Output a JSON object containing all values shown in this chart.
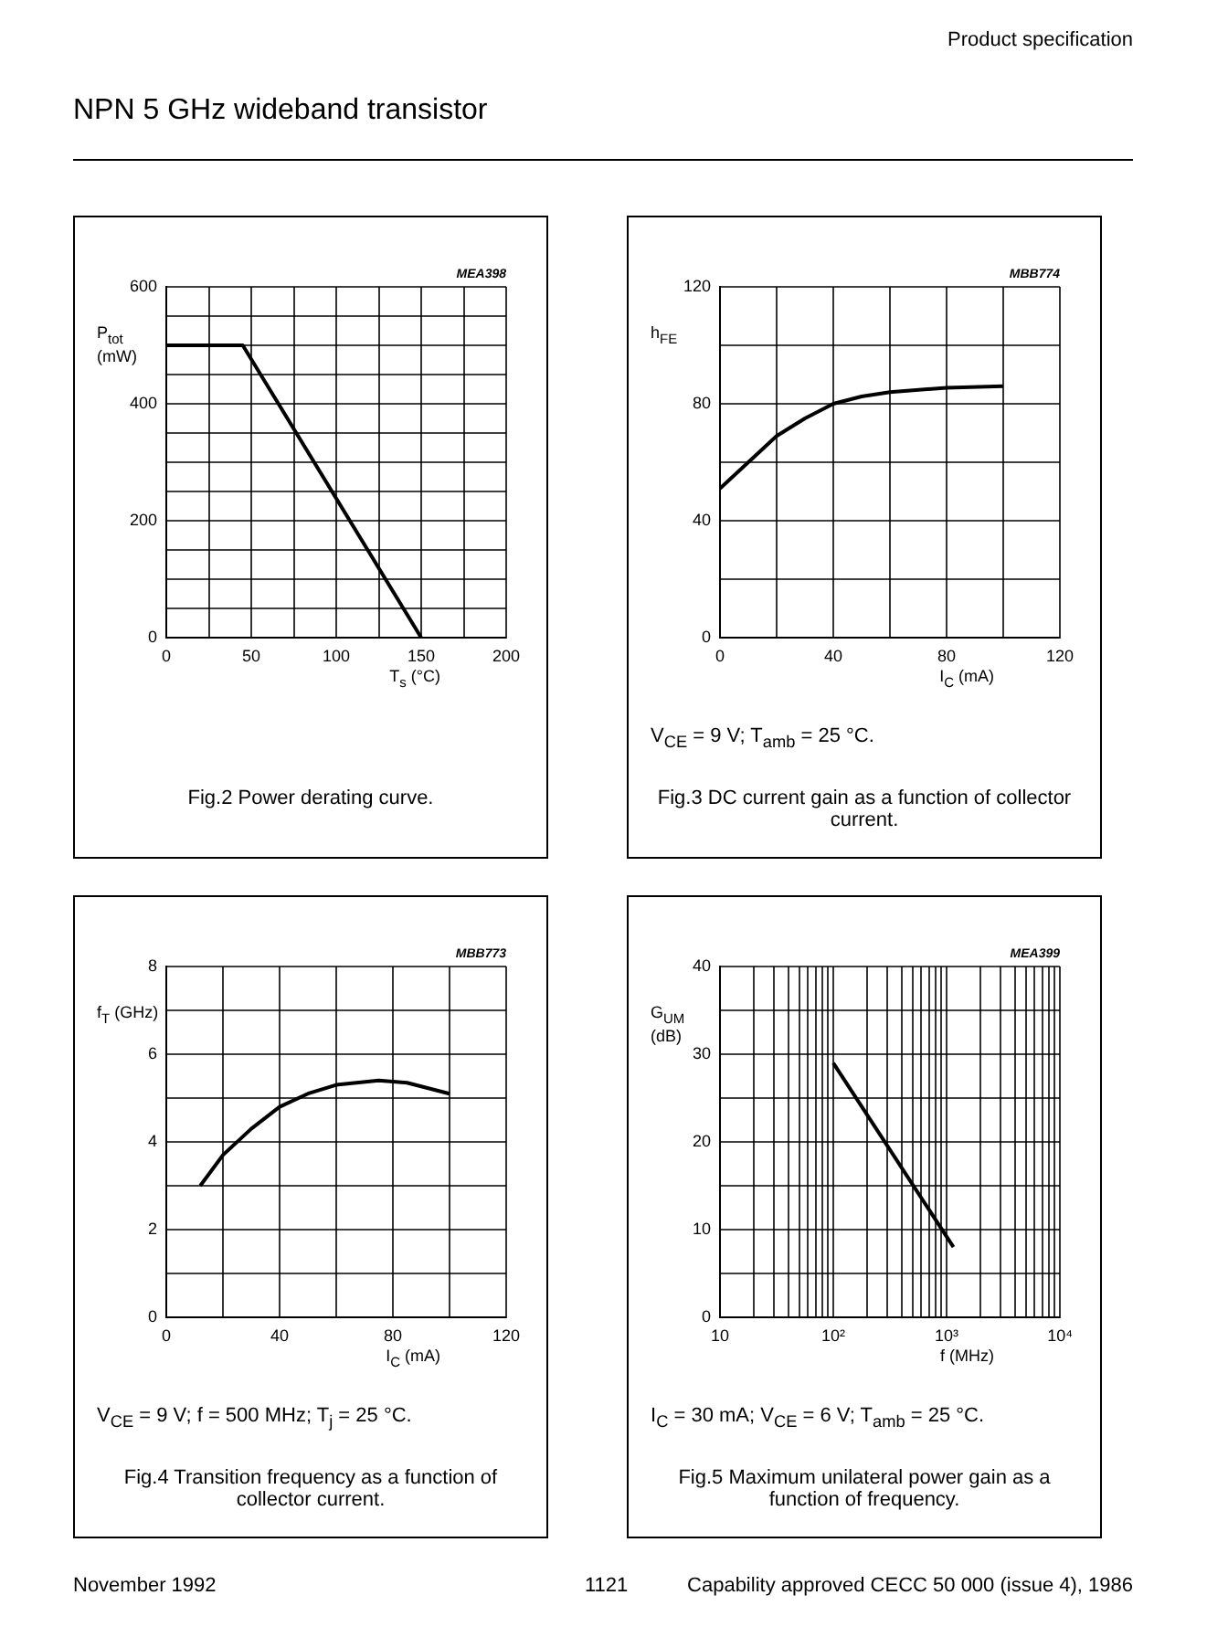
{
  "chart_data": [
    {
      "type": "line",
      "title": "Fig.2  Power derating curve.",
      "xlabel": "T$_{s}$ (°C)",
      "ylabel": "P$_{tot}$ (mW)",
      "annotations": [
        "MEA398",
        "Product specification",
        "NPN 5 GHz wideband transistor"
      ],
      "series": [
        {
          "color": "#000000",
          "x": [
            0,
            45,
            150
          ],
          "values": [
            500,
            500,
            0
          ]
        }
      ],
      "xlim": [
        0,
        200
      ],
      "xticks": [
        0,
        {
          "value": 25,
          "label": null
        },
        50,
        {
          "value": 75,
          "label": null
        },
        100,
        {
          "value": 125,
          "label": null
        },
        150,
        {
          "value": 175,
          "label": null
        },
        200
      ],
      "ylim": [
        0,
        600
      ],
      "yticks": [
        0,
        {
          "value": 50,
          "label": null
        },
        {
          "value": 100,
          "label": null
        },
        {
          "value": 150,
          "label": null
        },
        200,
        {
          "value": 250,
          "label": null
        },
        {
          "value": 300,
          "label": null
        },
        {
          "value": 350,
          "label": null
        },
        400,
        {
          "value": 450,
          "label": null
        },
        {
          "value": 500,
          "label": null
        },
        {
          "value": 550,
          "label": null
        },
        600
      ],
      "grid": true,
      "marker": "none",
      "line_style": "solid",
      "legend": false
    },
    {
      "type": "line",
      "title": "Fig.3  DC current gain as a function of collector current.",
      "subtitle": "V$_{CE}$ = 9 V; T$_{amb}$ = 25 °C.",
      "xlabel": "I$_{C}$ (mA)",
      "ylabel": "h$_{FE}$",
      "annotations": [
        "MBB774"
      ],
      "series": [
        {
          "color": "#000000",
          "x": [
            0,
            10,
            20,
            30,
            40,
            50,
            60,
            80,
            100
          ],
          "values": [
            51,
            60,
            69,
            75,
            80,
            82.5,
            84,
            85.5,
            86
          ]
        }
      ],
      "xlim": [
        0,
        120
      ],
      "xticks": [
        0,
        {
          "value": 20,
          "label": null
        },
        40,
        {
          "value": 60,
          "label": null
        },
        80,
        {
          "value": 100,
          "label": null
        },
        120
      ],
      "ylim": [
        0,
        120
      ],
      "yticks": [
        0,
        {
          "value": 20,
          "label": null
        },
        40,
        {
          "value": 60,
          "label": null
        },
        80,
        {
          "value": 100,
          "label": null
        },
        120
      ],
      "grid": true,
      "marker": "none",
      "line_style": "solid",
      "legend": false
    },
    {
      "type": "line",
      "title": "Fig.4  Transition frequency as a function of collector current.",
      "subtitle": "V$_{CE}$ = 9 V; f = 500 MHz; T$_{j}$ = 25 °C.",
      "xlabel": "I$_{C}$ (mA)",
      "ylabel": "f$_{T}$ (GHz)",
      "annotations": [
        "MBB773"
      ],
      "series": [
        {
          "color": "#000000",
          "x": [
            12,
            20,
            30,
            40,
            50,
            60,
            75,
            85,
            100
          ],
          "values": [
            3,
            3.7,
            4.3,
            4.8,
            5.1,
            5.3,
            5.4,
            5.35,
            5.1
          ]
        }
      ],
      "xlim": [
        0,
        120
      ],
      "xticks": [
        0,
        {
          "value": 20,
          "label": null
        },
        40,
        {
          "value": 60,
          "label": null
        },
        80,
        {
          "value": 100,
          "label": null
        },
        120
      ],
      "ylim": [
        0,
        8
      ],
      "yticks": [
        0,
        {
          "value": 1,
          "label": null
        },
        2,
        {
          "value": 3,
          "label": null
        },
        4,
        {
          "value": 5,
          "label": null
        },
        6,
        {
          "value": 7,
          "label": null
        },
        8
      ],
      "grid": true,
      "marker": "none",
      "line_style": "solid",
      "legend": false
    },
    {
      "type": "line",
      "title": "Fig.5  Maximum unilateral power gain as a function of frequency.",
      "subtitle": "I$_{C}$ = 30 mA; V$_{CE}$ = 6 V; T$_{amb}$ = 25 °C.",
      "xlabel": "f (MHz)",
      "ylabel": "G$_{UM}$ (dB)",
      "annotations": [
        "MEA399",
        "November 1992",
        "1121",
        "Capability approved CECC 50 000 (issue 4), 1986"
      ],
      "series": [
        {
          "color": "#000000",
          "x": [
            100,
            1150
          ],
          "values": [
            29,
            8
          ]
        }
      ],
      "log": "x",
      "xlim": [
        10,
        10000
      ],
      "xticks": [
        10,
        {
          "value": 20,
          "label": null
        },
        {
          "value": 30,
          "label": null
        },
        {
          "value": 40,
          "label": null
        },
        {
          "value": 50,
          "label": null
        },
        {
          "value": 60,
          "label": null
        },
        {
          "value": 70,
          "label": null
        },
        {
          "value": 80,
          "label": null
        },
        {
          "value": 90,
          "label": null
        },
        {
          "value": 100,
          "label": "10²"
        },
        {
          "value": 200,
          "label": null
        },
        {
          "value": 300,
          "label": null
        },
        {
          "value": 400,
          "label": null
        },
        {
          "value": 500,
          "label": null
        },
        {
          "value": 600,
          "label": null
        },
        {
          "value": 700,
          "label": null
        },
        {
          "value": 800,
          "label": null
        },
        {
          "value": 900,
          "label": null
        },
        {
          "value": 1000,
          "label": "10³"
        },
        {
          "value": 2000,
          "label": null
        },
        {
          "value": 3000,
          "label": null
        },
        {
          "value": 4000,
          "label": null
        },
        {
          "value": 5000,
          "label": null
        },
        {
          "value": 6000,
          "label": null
        },
        {
          "value": 7000,
          "label": null
        },
        {
          "value": 8000,
          "label": null
        },
        {
          "value": 9000,
          "label": null
        },
        {
          "value": 10000,
          "label": "10⁴"
        }
      ],
      "ylim": [
        0,
        40
      ],
      "yticks": [
        0,
        {
          "value": 5,
          "label": null
        },
        10,
        {
          "value": 15,
          "label": null
        },
        20,
        {
          "value": 25,
          "label": null
        },
        30,
        {
          "value": 35,
          "label": null
        },
        40
      ],
      "grid": true,
      "marker": "none",
      "line_style": "solid",
      "legend": false
    }
  ]
}
